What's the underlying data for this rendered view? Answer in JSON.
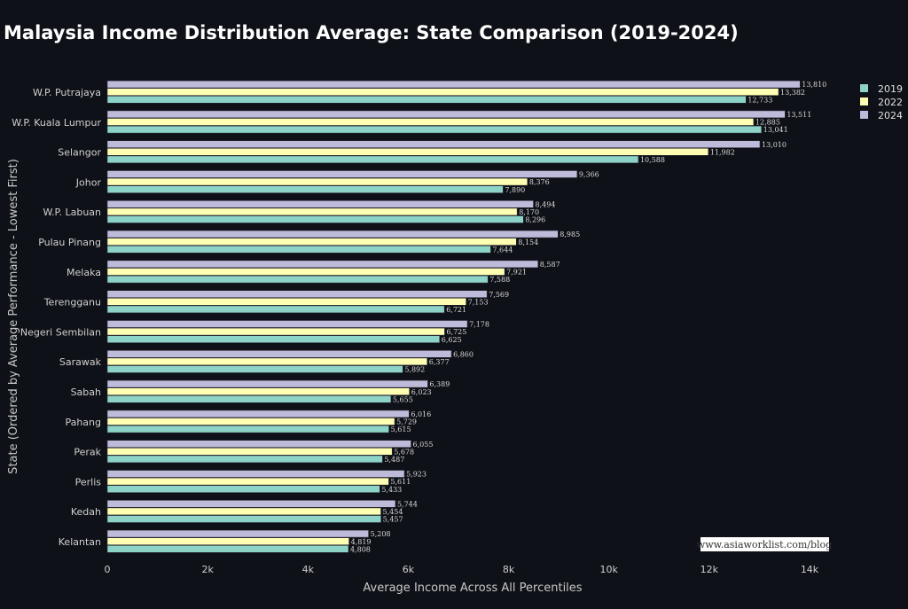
{
  "chart_data": {
    "type": "bar",
    "orientation": "horizontal",
    "title": "Malaysia Income Distribution Average: State Comparison (2019-2024)",
    "xlabel": "Average Income Across All Percentiles",
    "ylabel": "State (Ordered by Average Performance - Lowest First)",
    "xlim": [
      0,
      14000
    ],
    "xticks": [
      0,
      2000,
      4000,
      6000,
      8000,
      10000,
      12000,
      14000
    ],
    "xtick_labels": [
      "0",
      "2k",
      "4k",
      "6k",
      "8k",
      "10k",
      "12k",
      "14k"
    ],
    "grid": false,
    "legend_position": "top-right",
    "categories": [
      "W.P. Putrajaya",
      "W.P. Kuala Lumpur",
      "Selangor",
      "Johor",
      "W.P. Labuan",
      "Pulau Pinang",
      "Melaka",
      "Terengganu",
      "Negeri Sembilan",
      "Sarawak",
      "Sabah",
      "Pahang",
      "Perak",
      "Perlis",
      "Kedah",
      "Kelantan"
    ],
    "series": [
      {
        "name": "2019",
        "color": "#8dd3c7",
        "values": [
          12733,
          13041,
          10588,
          7890,
          8296,
          7644,
          7588,
          6721,
          6625,
          5892,
          5655,
          5615,
          5487,
          5433,
          5457,
          4808
        ]
      },
      {
        "name": "2022",
        "color": "#ffffb3",
        "values": [
          13382,
          12885,
          11982,
          8376,
          8170,
          8154,
          7921,
          7153,
          6725,
          6377,
          6023,
          5729,
          5678,
          5611,
          5454,
          4819
        ]
      },
      {
        "name": "2024",
        "color": "#bebada",
        "values": [
          13810,
          13511,
          13010,
          9366,
          8494,
          8985,
          8587,
          7569,
          7178,
          6860,
          6389,
          6016,
          6055,
          5923,
          5744,
          5208
        ]
      }
    ]
  },
  "watermark": "www.asiaworklist.com/blog",
  "colors": {
    "background": "#0e1117",
    "text": "#ffffff"
  }
}
